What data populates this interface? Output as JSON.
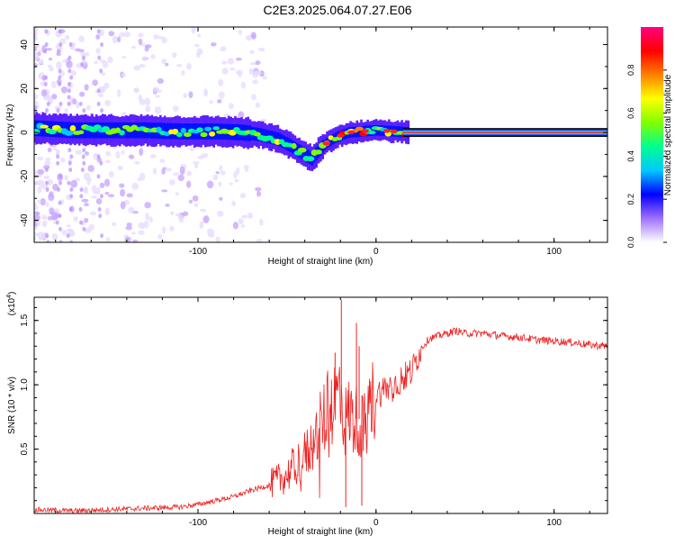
{
  "page_title": "C2E3.2025.064.07.27.E06",
  "chart_data": [
    {
      "type": "heatmap",
      "xlabel": "Height of straight line (km)",
      "ylabel": "Frequency (Hz)",
      "xlim": [
        -192,
        130
      ],
      "ylim": [
        -50,
        48
      ],
      "x_ticks": [
        -100,
        0,
        100
      ],
      "x_tick_labels": [
        "-100",
        "0",
        "100"
      ],
      "y_ticks": [
        -40,
        -20,
        0,
        20,
        40
      ],
      "y_tick_labels": [
        "-40",
        "-20",
        "0",
        "20",
        "40"
      ],
      "colorbar": {
        "label": "Normalized spectral amplitude",
        "range": [
          0.0,
          1.0
        ],
        "ticks": [
          0.0,
          0.2,
          0.4,
          0.6,
          0.8
        ],
        "tick_labels": [
          "0.0",
          "0.2",
          "0.4",
          "0.6",
          "0.8"
        ],
        "colors": [
          "#ffffff",
          "#a070ff",
          "#0000ff",
          "#00c8ff",
          "#00ff90",
          "#80ff00",
          "#ffff00",
          "#ff8000",
          "#ff0000",
          "#ff0080"
        ]
      },
      "ridge": {
        "x": [
          -192,
          -170,
          -150,
          -130,
          -110,
          -90,
          -75,
          -65,
          -55,
          -48,
          -42,
          -36,
          -33,
          -28,
          -22,
          -15,
          -8,
          0,
          10,
          20,
          130
        ],
        "freq": [
          2,
          1,
          1,
          1,
          0.5,
          0.5,
          0,
          -1,
          -3,
          -6,
          -9,
          -12,
          -9,
          -5,
          -2,
          0,
          0.5,
          1,
          0.5,
          0,
          0
        ]
      }
    },
    {
      "type": "line",
      "xlabel": "Height of straight line (km)",
      "ylabel": "SNR (10 * v/v)",
      "y_scale_label": "(x10",
      "y_scale_exponent": "4",
      "y_scale_suffix": ")",
      "xlim": [
        -192,
        130
      ],
      "ylim": [
        0,
        1.68
      ],
      "x_ticks": [
        -100,
        0,
        100
      ],
      "x_tick_labels": [
        "-100",
        "0",
        "100"
      ],
      "y_ticks": [
        0.5,
        1.0,
        1.5
      ],
      "y_tick_labels": [
        "0.5",
        "1.0",
        "1.5"
      ],
      "series": [
        {
          "color": "#ee2020",
          "x": [
            -192,
            -170,
            -150,
            -130,
            -110,
            -100,
            -90,
            -80,
            -70,
            -60,
            -55,
            -50,
            -45,
            -40,
            -35,
            -30,
            -25,
            -22,
            -20,
            -18,
            -15,
            -12,
            -10,
            -7,
            -5,
            -3,
            0,
            5,
            10,
            15,
            20,
            25,
            30,
            35,
            40,
            45,
            50,
            60,
            70,
            80,
            90,
            100,
            110,
            120,
            130
          ],
          "values": [
            0.03,
            0.02,
            0.03,
            0.04,
            0.05,
            0.07,
            0.1,
            0.13,
            0.18,
            0.22,
            0.26,
            0.3,
            0.38,
            0.45,
            0.55,
            0.72,
            0.85,
            0.9,
            1.0,
            0.7,
            0.78,
            0.72,
            0.75,
            0.65,
            0.75,
            0.85,
            0.92,
            0.97,
            1.0,
            1.05,
            1.1,
            1.28,
            1.36,
            1.38,
            1.4,
            1.42,
            1.4,
            1.4,
            1.38,
            1.37,
            1.35,
            1.34,
            1.33,
            1.31,
            1.3
          ]
        }
      ]
    }
  ]
}
